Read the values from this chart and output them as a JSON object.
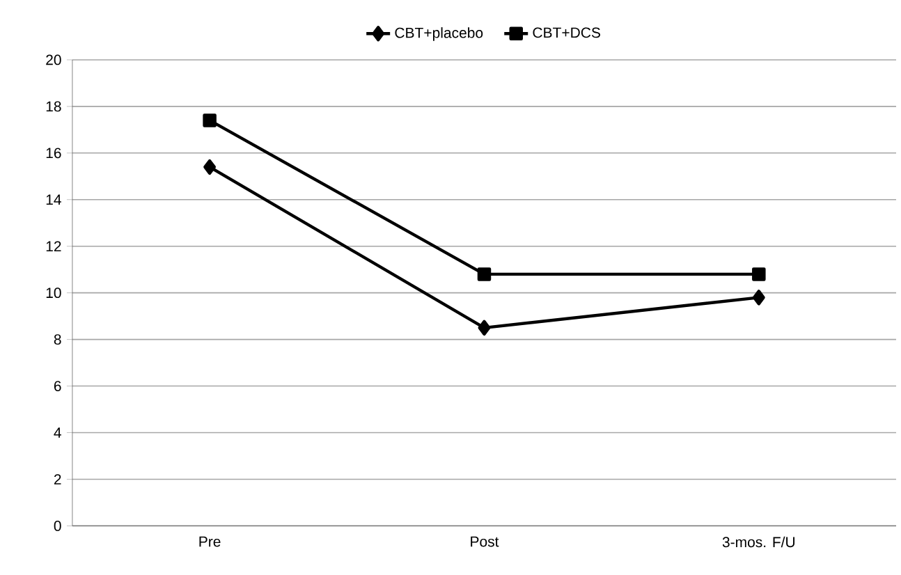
{
  "chart_data": {
    "type": "line",
    "categories": [
      "Pre",
      "Post",
      "3-mos. F/U"
    ],
    "series": [
      {
        "name": "CBT+placebo",
        "color": "#000000",
        "marker": "diamond",
        "values": [
          15.4,
          8.5,
          9.8
        ]
      },
      {
        "name": "CBT+DCS",
        "color": "#000000",
        "marker": "square",
        "values": [
          17.4,
          10.8,
          10.8
        ]
      }
    ],
    "ylim": [
      0,
      20
    ],
    "yticks": [
      0,
      2,
      4,
      6,
      8,
      10,
      12,
      14,
      16,
      18,
      20
    ],
    "grid": "y",
    "legend": "top",
    "line_style": "solid"
  }
}
